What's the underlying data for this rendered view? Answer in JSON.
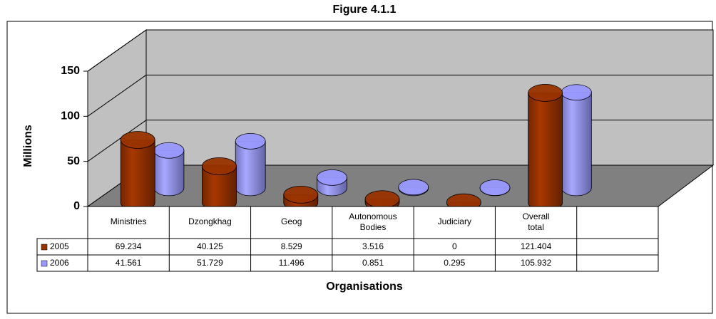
{
  "chart_data": {
    "type": "bar",
    "shape": "cylinder",
    "title": "Figure 4.1.1",
    "xlabel": "Organisations",
    "ylabel": "Millions",
    "categories": [
      "Ministries",
      "Dzongkhag",
      "Geog",
      "Autonomous Bodies",
      "Judiciary",
      "Overall total"
    ],
    "series": [
      {
        "name": "2005",
        "color": "#993300",
        "values": [
          69.234,
          40.125,
          8.529,
          3.516,
          0,
          121.404
        ]
      },
      {
        "name": "2006",
        "color": "#9999ff",
        "values": [
          41.561,
          51.729,
          11.496,
          0.851,
          0.295,
          105.932
        ]
      }
    ],
    "ylim": [
      0,
      150
    ],
    "yticks": [
      0,
      50,
      100,
      150
    ],
    "grid": true,
    "data_table": true
  }
}
